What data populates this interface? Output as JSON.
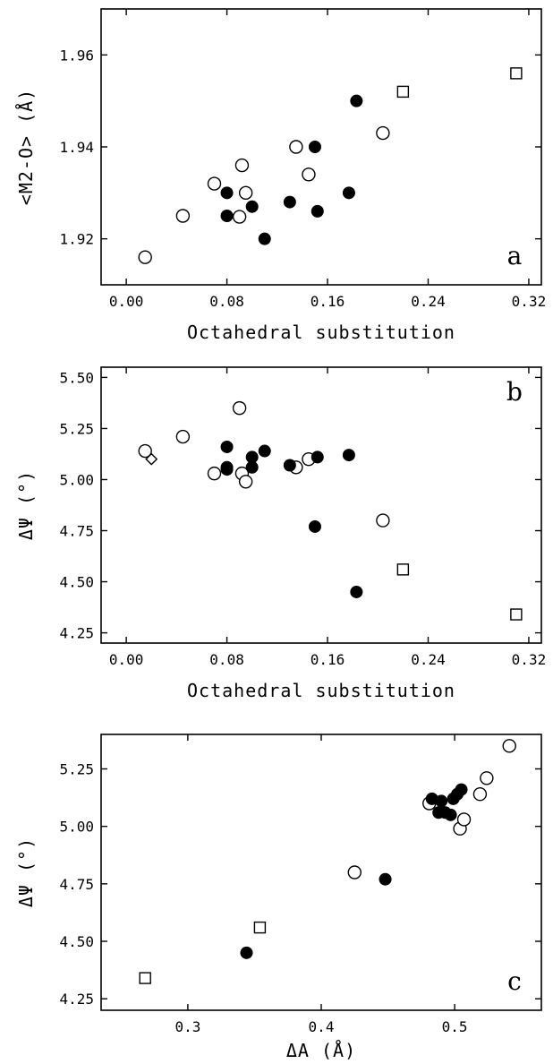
{
  "chart_data": [
    {
      "type": "scatter",
      "panel_label": "a",
      "xlabel": "Octahedral substitution",
      "ylabel": "<M2-O> (Å)",
      "xlim": [
        -0.02,
        0.33
      ],
      "ylim": [
        1.91,
        1.97
      ],
      "xticks": [
        0.0,
        0.08,
        0.16,
        0.24,
        0.32
      ],
      "xtick_labels": [
        "0.00",
        "0.08",
        "0.16",
        "0.24",
        "0.32"
      ],
      "yticks": [
        1.92,
        1.94,
        1.96
      ],
      "ytick_labels": [
        "1.92",
        "1.94",
        "1.96"
      ],
      "series": [
        {
          "marker": "open-circle",
          "points": [
            [
              0.015,
              1.916
            ],
            [
              0.045,
              1.925
            ],
            [
              0.07,
              1.932
            ],
            [
              0.09,
              1.9248
            ],
            [
              0.092,
              1.936
            ],
            [
              0.095,
              1.93
            ],
            [
              0.135,
              1.94
            ],
            [
              0.145,
              1.934
            ],
            [
              0.204,
              1.943
            ]
          ]
        },
        {
          "marker": "filled-circle",
          "points": [
            [
              0.08,
              1.93
            ],
            [
              0.08,
              1.925
            ],
            [
              0.1,
              1.927
            ],
            [
              0.11,
              1.92
            ],
            [
              0.13,
              1.928
            ],
            [
              0.15,
              1.94
            ],
            [
              0.152,
              1.926
            ],
            [
              0.177,
              1.93
            ],
            [
              0.183,
              1.95
            ]
          ]
        },
        {
          "marker": "open-square",
          "points": [
            [
              0.22,
              1.952
            ],
            [
              0.31,
              1.956
            ]
          ]
        }
      ]
    },
    {
      "type": "scatter",
      "panel_label": "b",
      "xlabel": "Octahedral substitution",
      "ylabel": "ΔΨ (°)",
      "xlim": [
        -0.02,
        0.33
      ],
      "ylim": [
        4.2,
        5.55
      ],
      "xticks": [
        0.0,
        0.08,
        0.16,
        0.24,
        0.32
      ],
      "xtick_labels": [
        "0.00",
        "0.08",
        "0.16",
        "0.24",
        "0.32"
      ],
      "yticks": [
        4.25,
        4.5,
        4.75,
        5.0,
        5.25,
        5.5
      ],
      "ytick_labels": [
        "4.25",
        "4.50",
        "4.75",
        "5.00",
        "5.25",
        "5.50"
      ],
      "series": [
        {
          "marker": "open-circle",
          "points": [
            [
              0.015,
              5.14
            ],
            [
              0.045,
              5.21
            ],
            [
              0.07,
              5.03
            ],
            [
              0.09,
              5.35
            ],
            [
              0.092,
              5.03
            ],
            [
              0.095,
              4.99
            ],
            [
              0.135,
              5.06
            ],
            [
              0.145,
              5.1
            ],
            [
              0.204,
              4.8
            ]
          ]
        },
        {
          "marker": "filled-circle",
          "points": [
            [
              0.08,
              5.16
            ],
            [
              0.08,
              5.06
            ],
            [
              0.08,
              5.05
            ],
            [
              0.1,
              5.11
            ],
            [
              0.1,
              5.06
            ],
            [
              0.11,
              5.14
            ],
            [
              0.13,
              5.07
            ],
            [
              0.15,
              4.77
            ],
            [
              0.152,
              5.11
            ],
            [
              0.177,
              5.12
            ],
            [
              0.183,
              4.45
            ]
          ]
        },
        {
          "marker": "open-square",
          "points": [
            [
              0.22,
              4.56
            ],
            [
              0.31,
              4.34
            ]
          ]
        },
        {
          "marker": "open-diamond",
          "points": [
            [
              0.02,
              5.1
            ]
          ]
        }
      ]
    },
    {
      "type": "scatter",
      "panel_label": "c",
      "xlabel": "ΔA (Å)",
      "ylabel": "ΔΨ (°)",
      "xlim": [
        0.235,
        0.565
      ],
      "ylim": [
        4.2,
        5.4
      ],
      "xticks": [
        0.3,
        0.4,
        0.5
      ],
      "xtick_labels": [
        "0.3",
        "0.4",
        "0.5"
      ],
      "yticks": [
        4.25,
        4.5,
        4.75,
        5.0,
        5.25
      ],
      "ytick_labels": [
        "4.25",
        "4.50",
        "4.75",
        "5.00",
        "5.25"
      ],
      "series": [
        {
          "marker": "open-circle",
          "points": [
            [
              0.425,
              4.8
            ],
            [
              0.481,
              5.1
            ],
            [
              0.504,
              4.99
            ],
            [
              0.507,
              5.03
            ],
            [
              0.519,
              5.14
            ],
            [
              0.524,
              5.21
            ],
            [
              0.541,
              5.35
            ]
          ]
        },
        {
          "marker": "filled-circle",
          "points": [
            [
              0.344,
              4.45
            ],
            [
              0.448,
              4.77
            ],
            [
              0.483,
              5.12
            ],
            [
              0.488,
              5.06
            ],
            [
              0.49,
              5.11
            ],
            [
              0.493,
              5.06
            ],
            [
              0.497,
              5.05
            ],
            [
              0.499,
              5.12
            ],
            [
              0.502,
              5.14
            ],
            [
              0.505,
              5.16
            ]
          ]
        },
        {
          "marker": "open-square",
          "points": [
            [
              0.268,
              4.34
            ],
            [
              0.354,
              4.56
            ]
          ]
        }
      ]
    }
  ]
}
